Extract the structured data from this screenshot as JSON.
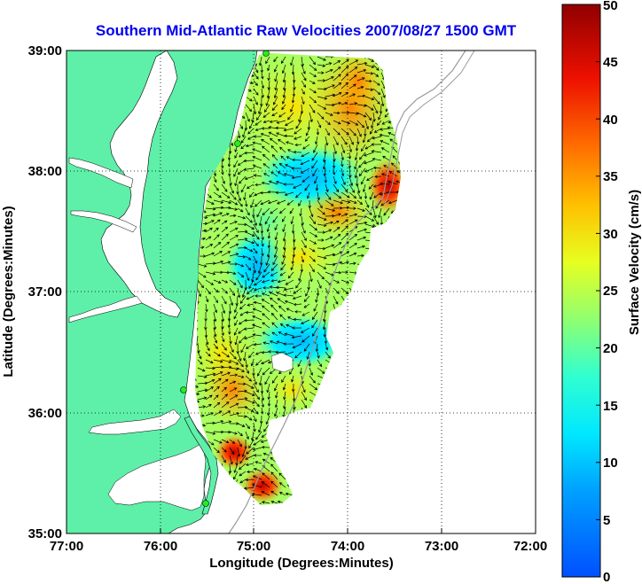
{
  "title": "Southern Mid-Atlantic Raw Velocities 2007/08/27 1500 GMT",
  "map": {
    "xlabel": "Longitude (Degrees:Minutes)",
    "ylabel": "Latitude (Degrees:Minutes)",
    "xlim": [
      -77,
      -72
    ],
    "ylim": [
      35,
      39
    ],
    "x_ticks": [
      "77:00",
      "76:00",
      "75:00",
      "74:00",
      "73:00",
      "72:00"
    ],
    "y_ticks": [
      "39:00",
      "38:00",
      "37:00",
      "36:00",
      "35:00"
    ],
    "grid": "dotted",
    "land_color": "#5ef0a8",
    "bathymetry_color": "#9a9a9a"
  },
  "colorbar": {
    "label": "Surface Velocity (cm/s)",
    "range": [
      0,
      50
    ],
    "ticks": [
      "50",
      "45",
      "40",
      "35",
      "30",
      "25",
      "20",
      "15",
      "10",
      "5",
      "0"
    ],
    "colormap": "jet"
  },
  "chart_data": {
    "type": "heatmap",
    "variable": "Surface Velocity (cm/s)",
    "lon_range": [
      -77,
      -72
    ],
    "lat_range": [
      35,
      39
    ],
    "hotspots": [
      {
        "lon": -74.0,
        "lat": 38.6,
        "velocity": 38
      },
      {
        "lon": -73.5,
        "lat": 37.85,
        "velocity": 45
      },
      {
        "lon": -75.2,
        "lat": 35.5,
        "velocity": 44
      },
      {
        "lon": -74.95,
        "lat": 35.3,
        "velocity": 46
      },
      {
        "lon": -74.4,
        "lat": 36.7,
        "velocity": 8
      },
      {
        "lon": -74.2,
        "lat": 38.0,
        "velocity": 12
      }
    ]
  }
}
